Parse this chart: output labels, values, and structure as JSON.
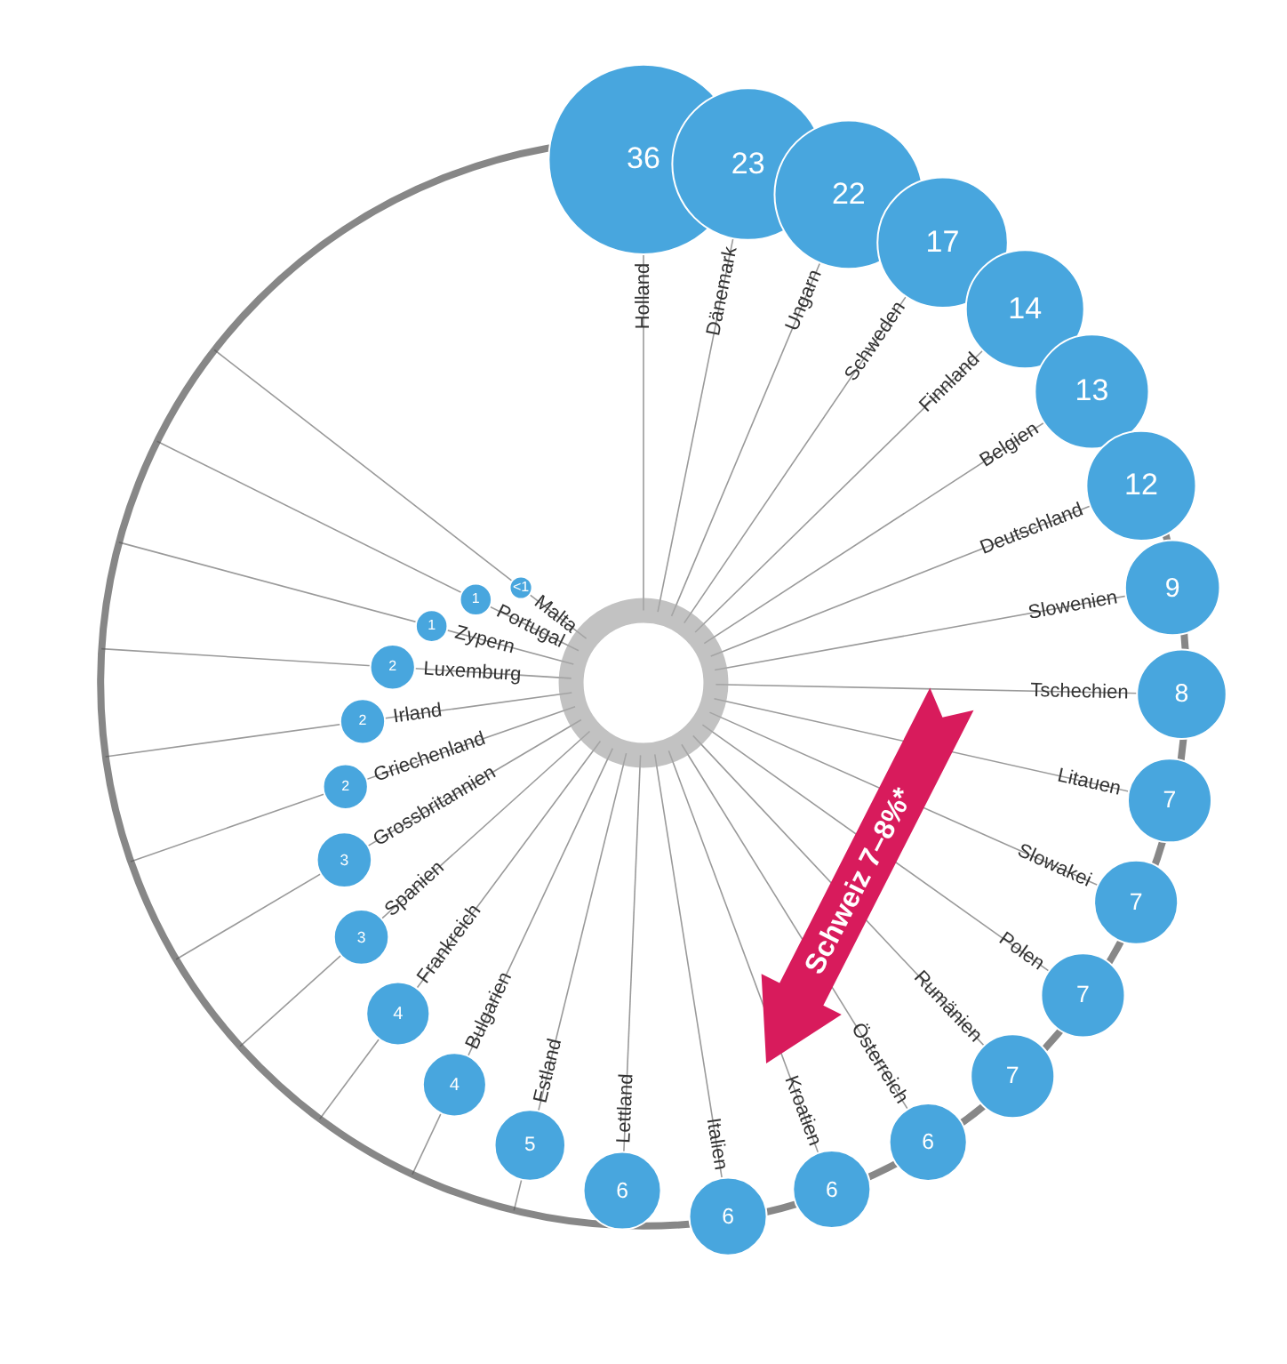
{
  "chart_data": {
    "type": "other",
    "categories": [
      "Holland",
      "Dänemark",
      "Ungarn",
      "Schweden",
      "Finnland",
      "Belgien",
      "Deutschland",
      "Slowenien",
      "Tschechien",
      "Litauen",
      "Slowakei",
      "Polen",
      "Rumänien",
      "Österreich",
      "Kroatien",
      "Italien",
      "Lettland",
      "Estland",
      "Bulgarien",
      "Frankreich",
      "Spanien",
      "Grossbritannien",
      "Griechenland",
      "Irland",
      "Luxemburg",
      "Zypern",
      "Portugal",
      "Malta"
    ],
    "values": [
      36,
      23,
      22,
      17,
      14,
      13,
      12,
      9,
      8,
      7,
      7,
      7,
      7,
      6,
      6,
      6,
      6,
      5,
      4,
      4,
      3,
      3,
      2,
      2,
      2,
      1,
      1,
      0.5
    ],
    "value_labels": [
      "36",
      "23",
      "22",
      "17",
      "14",
      "13",
      "12",
      "9",
      "8",
      "7",
      "7",
      "7",
      "7",
      "6",
      "6",
      "6",
      "6",
      "5",
      "4",
      "4",
      "3",
      "3",
      "2",
      "2",
      "2",
      "1",
      "1",
      "<1"
    ],
    "color": "#48a6de",
    "annotations": [
      "Schweiz 7–8%*"
    ]
  }
}
